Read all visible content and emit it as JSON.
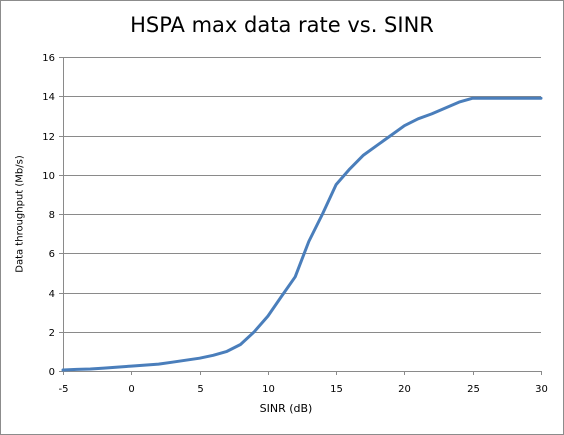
{
  "chart_data": {
    "type": "line",
    "title": "HSPA max data rate vs. SINR",
    "xlabel": "SINR (dB)",
    "ylabel": "Data throughput (Mb/s)",
    "xlim": [
      -5,
      30
    ],
    "ylim": [
      0,
      16
    ],
    "x_ticks": [
      -5,
      0,
      5,
      10,
      15,
      20,
      25,
      30
    ],
    "y_ticks": [
      0,
      2,
      4,
      6,
      8,
      10,
      12,
      14,
      16
    ],
    "grid": "horizontal",
    "legend": "none",
    "series": [
      {
        "color": "#4a7ebb",
        "x": [
          -5,
          -4,
          -3,
          -2,
          -1,
          0,
          1,
          2,
          3,
          4,
          5,
          6,
          7,
          8,
          9,
          10,
          11,
          12,
          13,
          14,
          15,
          16,
          17,
          18,
          19,
          20,
          21,
          22,
          23,
          24,
          25,
          26,
          27,
          28,
          29,
          30
        ],
        "y": [
          0.05,
          0.08,
          0.1,
          0.15,
          0.2,
          0.25,
          0.3,
          0.35,
          0.45,
          0.55,
          0.65,
          0.8,
          1.0,
          1.35,
          2.0,
          2.8,
          3.8,
          4.8,
          6.6,
          8.0,
          9.5,
          10.3,
          11.0,
          11.5,
          12.0,
          12.5,
          12.85,
          13.1,
          13.4,
          13.7,
          13.9,
          13.9,
          13.9,
          13.9,
          13.9,
          13.9
        ]
      }
    ]
  }
}
